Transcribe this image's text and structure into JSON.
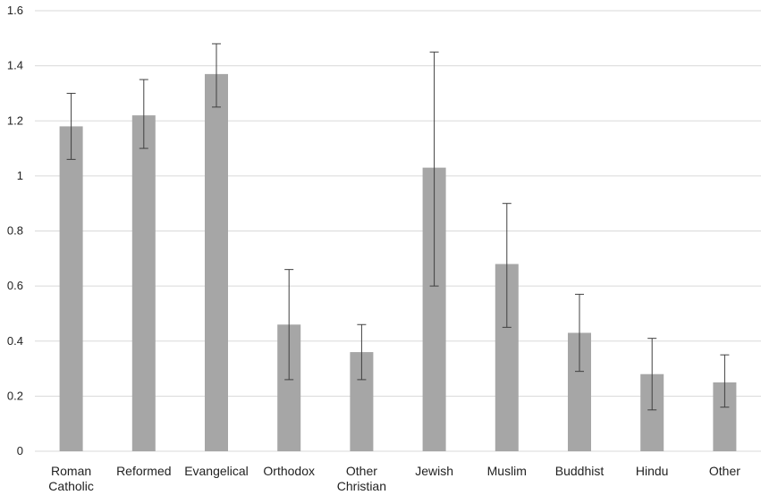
{
  "chart_data": {
    "type": "bar",
    "title": "",
    "xlabel": "",
    "ylabel": "",
    "categories": [
      [
        "Roman",
        "Catholic"
      ],
      [
        "Reformed"
      ],
      [
        "Evangelical"
      ],
      [
        "Orthodox"
      ],
      [
        "Other",
        "Christian"
      ],
      [
        "Jewish"
      ],
      [
        "Muslim"
      ],
      [
        "Buddhist"
      ],
      [
        "Hindu"
      ],
      [
        "Other"
      ]
    ],
    "values": [
      1.18,
      1.22,
      1.37,
      0.46,
      0.36,
      1.03,
      0.68,
      0.43,
      0.28,
      0.25
    ],
    "error_low": [
      1.06,
      1.1,
      1.25,
      0.26,
      0.26,
      0.6,
      0.45,
      0.29,
      0.15,
      0.16
    ],
    "error_high": [
      1.3,
      1.35,
      1.48,
      0.66,
      0.46,
      1.45,
      0.9,
      0.57,
      0.41,
      0.35
    ],
    "ylim": [
      0,
      1.6
    ],
    "yticks": [
      "0",
      "0.2",
      "0.4",
      "0.6",
      "0.8",
      "1",
      "1.2",
      "1.4",
      "1.6"
    ],
    "grid": true,
    "legend": "none",
    "bar_color": "#a6a6a6",
    "grid_color": "#d9d9d9",
    "errorbar_color": "#404040"
  }
}
